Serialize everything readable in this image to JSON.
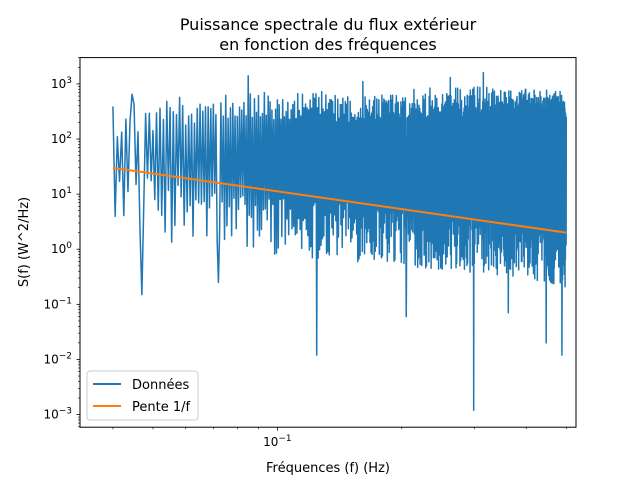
{
  "chart_data": {
    "type": "line",
    "title": "Puissance spectrale du flux extérieur\nen fonction des fréquences",
    "title_lines": [
      "Puissance spectrale du flux extérieur",
      "en fonction des fréquences"
    ],
    "xlabel": "Fréquences (f) (Hz)",
    "ylabel": "S(f) (W^2/Hz)",
    "x_scale": "log",
    "y_scale": "log",
    "xlim": [
      0.0333,
      0.5278
    ],
    "ylim": [
      0.00059,
      3000
    ],
    "x_ticks": [
      {
        "value": 0.1,
        "label": "10",
        "exp": "−1"
      }
    ],
    "y_ticks": [
      {
        "value": 0.001,
        "label": "10",
        "exp": "−3"
      },
      {
        "value": 0.01,
        "label": "10",
        "exp": "−2"
      },
      {
        "value": 0.1,
        "label": "10",
        "exp": "−1"
      },
      {
        "value": 1,
        "label": "10",
        "exp": "0"
      },
      {
        "value": 10,
        "label": "10",
        "exp": "1"
      },
      {
        "value": 100,
        "label": "10",
        "exp": "2"
      },
      {
        "value": 1000,
        "label": "10",
        "exp": "3"
      }
    ],
    "grid": false,
    "legend_position": "lower-left",
    "series": [
      {
        "name": "Données",
        "color": "#1f77b4",
        "x_range": [
          0.04,
          0.5
        ],
        "upper_envelope": {
          "x": [
            0.04,
            0.05,
            0.07,
            0.1,
            0.15,
            0.2,
            0.3,
            0.4,
            0.5
          ],
          "y": [
            400,
            500,
            700,
            800,
            700,
            800,
            900,
            800,
            750
          ]
        },
        "lower_envelope": {
          "x": [
            0.04,
            0.05,
            0.07,
            0.1,
            0.15,
            0.2,
            0.3,
            0.4,
            0.5
          ],
          "y": [
            4,
            1.5,
            1,
            0.8,
            0.6,
            0.5,
            0.35,
            0.3,
            0.2
          ]
        },
        "peaks": [
          {
            "x": 0.0408,
            "y": 110
          },
          {
            "x": 0.0445,
            "y": 650
          },
          {
            "x": 0.085,
            "y": 1400
          },
          {
            "x": 0.161,
            "y": 1100
          },
          {
            "x": 0.262,
            "y": 1300
          },
          {
            "x": 0.315,
            "y": 1600
          }
        ],
        "dips": [
          {
            "x": 0.0468,
            "y": 0.15
          },
          {
            "x": 0.0722,
            "y": 0.25
          },
          {
            "x": 0.1245,
            "y": 0.012
          },
          {
            "x": 0.205,
            "y": 0.06
          },
          {
            "x": 0.2985,
            "y": 0.0012
          },
          {
            "x": 0.362,
            "y": 0.07
          },
          {
            "x": 0.447,
            "y": 0.02
          },
          {
            "x": 0.488,
            "y": 0.012
          }
        ]
      },
      {
        "name": "Pente 1/f",
        "color": "#ff7f0e",
        "x": [
          0.04,
          0.5
        ],
        "y": [
          30,
          2
        ]
      }
    ]
  }
}
